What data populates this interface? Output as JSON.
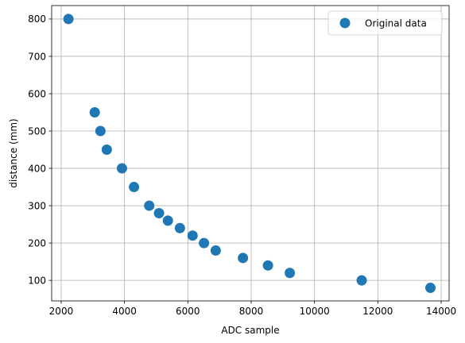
{
  "chart_data": {
    "type": "scatter",
    "xlabel": "ADC sample",
    "ylabel": "distance (mm)",
    "xlim": [
      1700,
      14250
    ],
    "ylim": [
      45,
      836
    ],
    "xticks": [
      2000,
      4000,
      6000,
      8000,
      10000,
      12000,
      14000
    ],
    "yticks": [
      100,
      200,
      300,
      400,
      500,
      600,
      700,
      800
    ],
    "grid": true,
    "legend_position": "top-right",
    "series": [
      {
        "name": "Original data",
        "color": "#1f77b4",
        "marker": "circle",
        "x": [
          2230,
          3060,
          3240,
          3440,
          3920,
          4300,
          4780,
          5090,
          5370,
          5750,
          6150,
          6510,
          6880,
          7740,
          8530,
          9220,
          11490,
          13660
        ],
        "y": [
          800,
          550,
          500,
          450,
          400,
          350,
          300,
          280,
          260,
          240,
          220,
          200,
          180,
          160,
          140,
          120,
          100,
          80
        ]
      }
    ]
  }
}
